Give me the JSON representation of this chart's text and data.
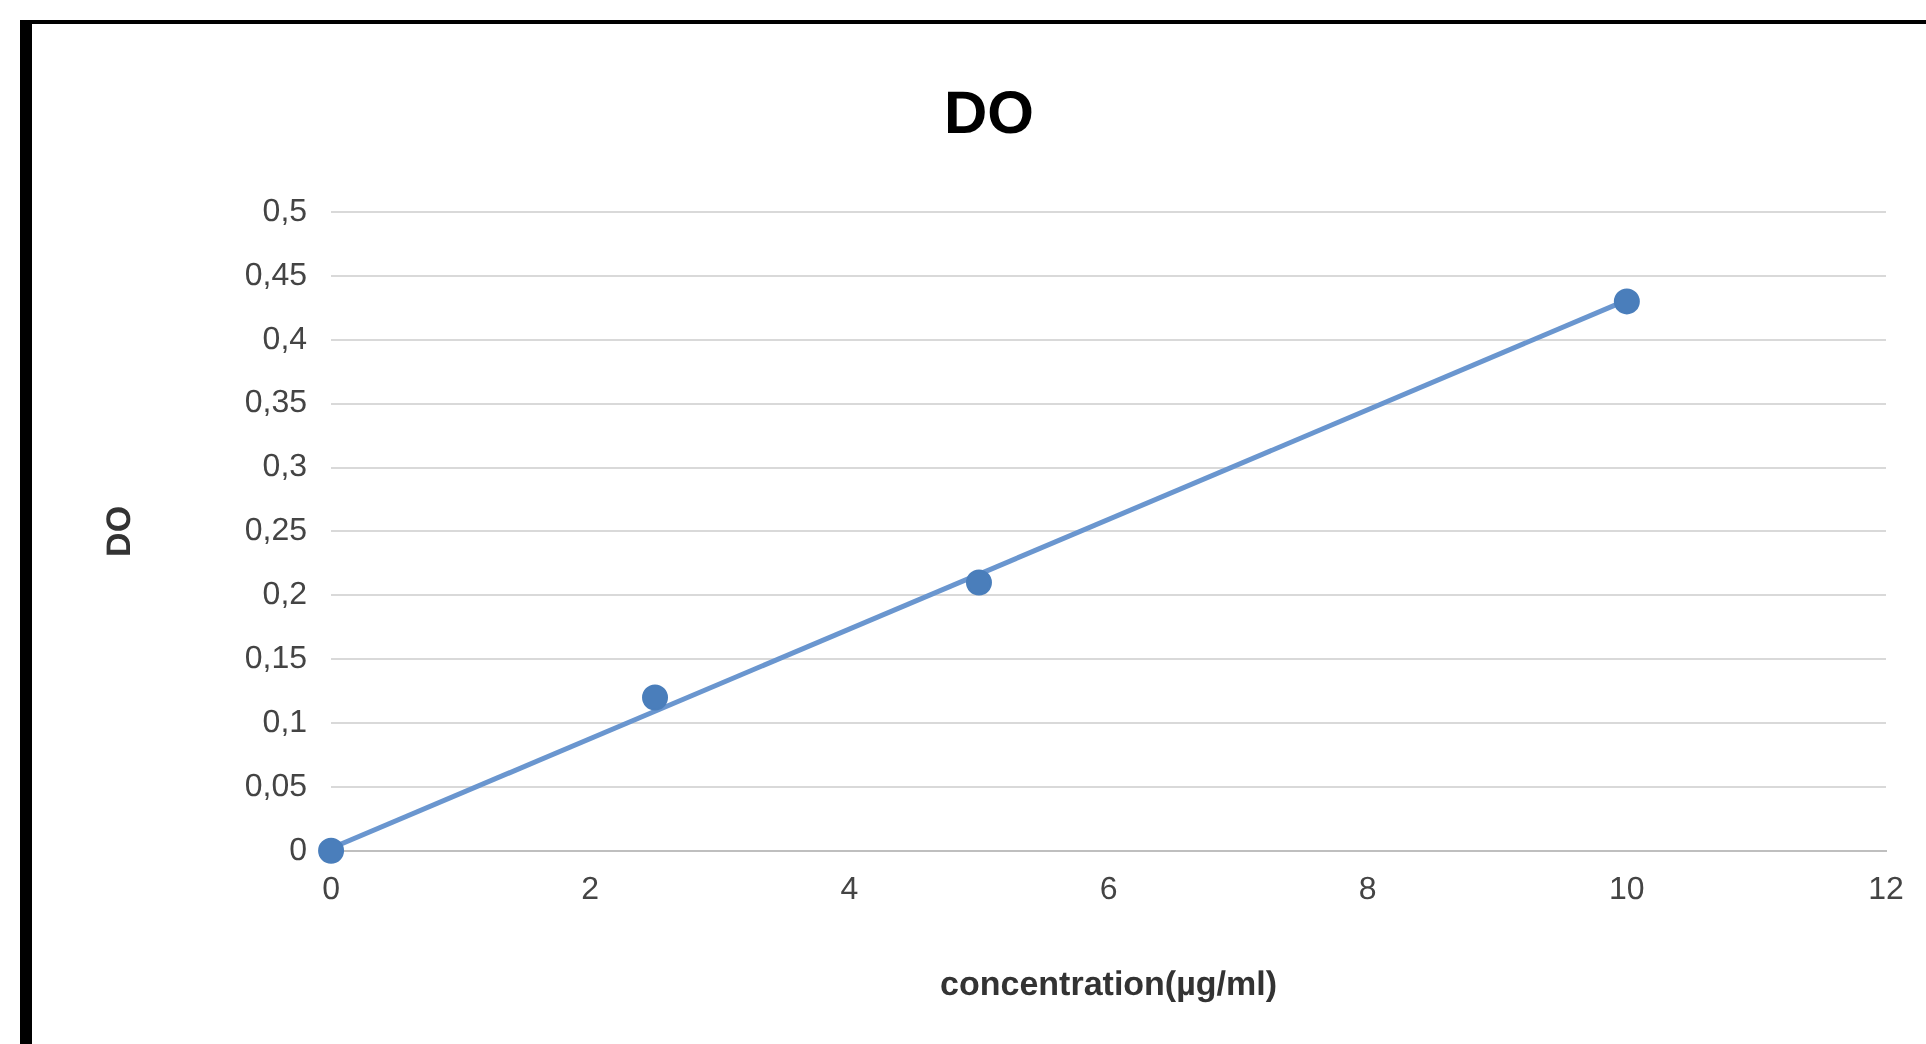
{
  "chart_data": {
    "type": "scatter",
    "title": "DO",
    "xlabel": "concentration(µg/ml)",
    "ylabel": "DO",
    "series": [
      {
        "color": "#4a7ebb",
        "x": [
          0,
          2.5,
          5,
          10
        ],
        "values": [
          0,
          0.12,
          0.21,
          0.43
        ],
        "marker": "circle"
      },
      {
        "type": "line",
        "color": "#6a96cf",
        "x": [
          0,
          10
        ],
        "values": [
          0.002,
          0.431
        ],
        "marker": "none",
        "line_style": "solid"
      }
    ],
    "xlim": [
      0,
      12
    ],
    "xticks": [
      0,
      2,
      4,
      6,
      8,
      10,
      12
    ],
    "ylim": [
      0,
      0.5
    ],
    "yticks": [
      0,
      {
        "value": 0.05,
        "label": "0,05"
      },
      {
        "value": 0.1,
        "label": "0,1"
      },
      {
        "value": 0.15,
        "label": "0,15"
      },
      {
        "value": 0.2,
        "label": "0,2"
      },
      {
        "value": 0.25,
        "label": "0,25"
      },
      {
        "value": 0.3,
        "label": "0,3"
      },
      {
        "value": 0.35,
        "label": "0,35"
      },
      {
        "value": 0.4,
        "label": "0,4"
      },
      {
        "value": 0.45,
        "label": "0,45"
      },
      {
        "value": 0.5,
        "label": "0,5"
      }
    ],
    "grid": "y",
    "legend": false
  }
}
